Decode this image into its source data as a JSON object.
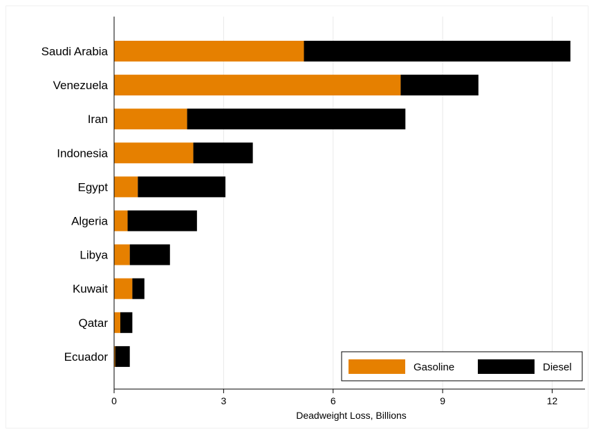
{
  "chart_data": {
    "type": "bar",
    "orientation": "horizontal",
    "stacked": true,
    "categories": [
      "Saudi Arabia",
      "Venezuela",
      "Iran",
      "Indonesia",
      "Egypt",
      "Algeria",
      "Libya",
      "Kuwait",
      "Qatar",
      "Ecuador"
    ],
    "series": [
      {
        "name": "Gasoline",
        "color": "#e68000",
        "values": [
          5.2,
          7.85,
          2.0,
          2.17,
          0.65,
          0.37,
          0.43,
          0.5,
          0.17,
          0.03
        ]
      },
      {
        "name": "Diesel",
        "color": "#000000",
        "values": [
          7.3,
          2.13,
          5.98,
          1.63,
          2.4,
          1.9,
          1.1,
          0.33,
          0.33,
          0.4
        ]
      }
    ],
    "xlabel": "Deadweight Loss, Billions",
    "ylabel": "",
    "title": "",
    "xlim": [
      0,
      12.9
    ],
    "xticks": [
      0,
      3,
      6,
      9,
      12
    ],
    "grid": true,
    "legend_position": "bottom-right"
  }
}
